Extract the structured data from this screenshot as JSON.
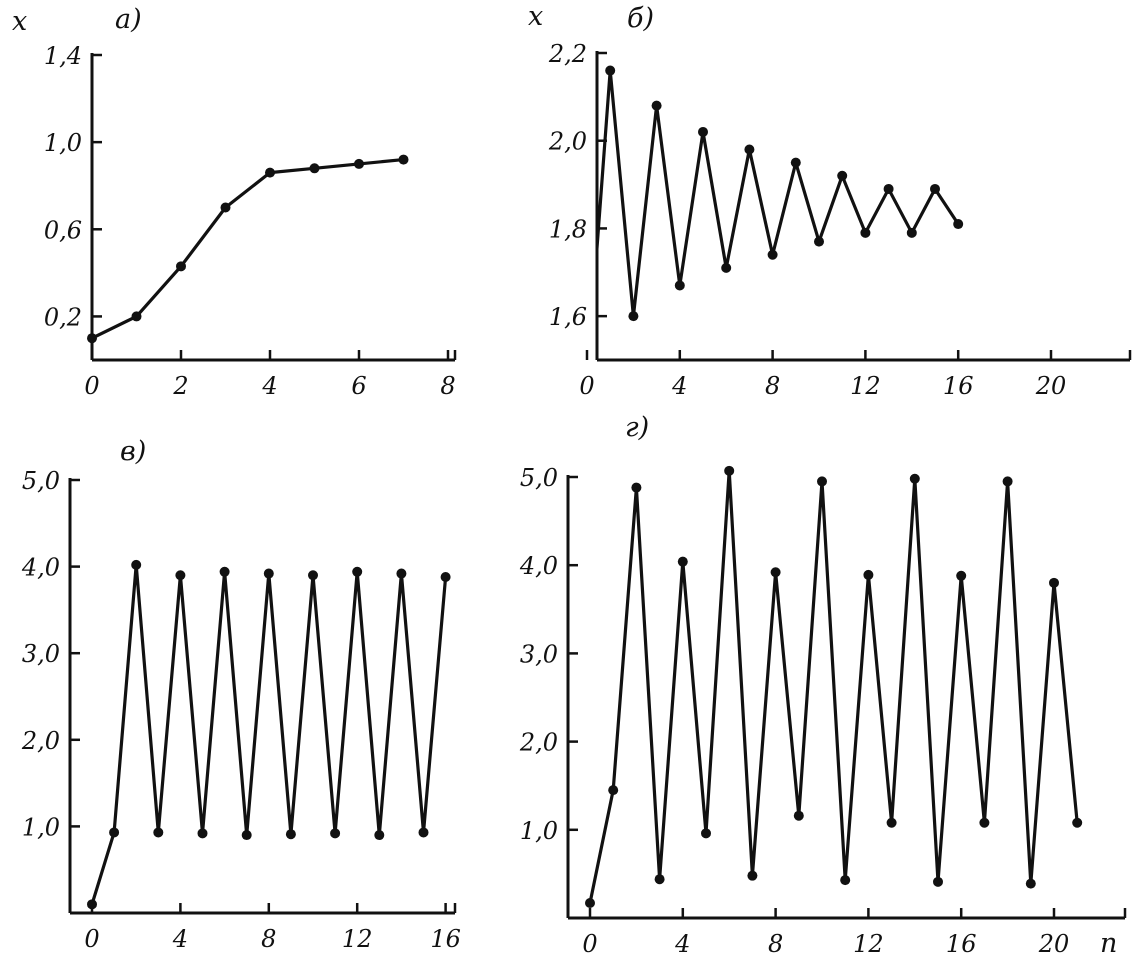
{
  "chart_data": [
    {
      "type": "line",
      "panel_label": "а)",
      "ylabel": "x",
      "xlabel": "",
      "xlim": [
        0,
        8
      ],
      "ylim": [
        0.0,
        1.4
      ],
      "x_ticks": [
        "0",
        "2",
        "4",
        "6",
        "8"
      ],
      "y_ticks": [
        "0,2",
        "0,6",
        "1,0",
        "1,4"
      ],
      "x": [
        0,
        1,
        2,
        3,
        4,
        5,
        6,
        7
      ],
      "series": [
        {
          "values": [
            0.1,
            0.2,
            0.43,
            0.7,
            0.86,
            0.88,
            0.9,
            0.92
          ]
        }
      ]
    },
    {
      "type": "line",
      "panel_label": "б)",
      "ylabel": "x",
      "xlabel": "",
      "xlim": [
        0,
        24
      ],
      "ylim": [
        1.5,
        2.2
      ],
      "x_ticks": [
        "0",
        "4",
        "8",
        "12",
        "16",
        "20"
      ],
      "y_ticks": [
        "1,6",
        "1,8",
        "2,0",
        "2,2"
      ],
      "x": [
        0,
        1,
        2,
        3,
        4,
        5,
        6,
        7,
        8,
        9,
        10,
        11,
        12,
        13,
        14,
        15,
        16
      ],
      "series": [
        {
          "values": [
            1.45,
            2.16,
            1.6,
            2.08,
            1.67,
            2.02,
            1.71,
            1.98,
            1.74,
            1.95,
            1.77,
            1.92,
            1.79,
            1.89,
            1.79,
            1.89,
            1.81
          ]
        }
      ]
    },
    {
      "type": "line",
      "panel_label": "в)",
      "ylabel": "",
      "xlabel": "",
      "xlim": [
        0,
        16.5
      ],
      "ylim": [
        0.0,
        5.0
      ],
      "x_ticks": [
        "0",
        "4",
        "8",
        "12",
        "16"
      ],
      "y_ticks": [
        "1,0",
        "2,0",
        "3,0",
        "4,0",
        "5,0"
      ],
      "x": [
        0,
        1,
        2,
        3,
        4,
        5,
        6,
        7,
        8,
        9,
        10,
        11,
        12,
        13,
        14,
        15,
        16
      ],
      "series": [
        {
          "values": [
            0.1,
            0.93,
            4.02,
            0.93,
            3.9,
            0.92,
            3.94,
            0.9,
            3.92,
            0.91,
            3.9,
            0.92,
            3.94,
            0.9,
            3.92,
            0.93,
            3.88
          ]
        }
      ]
    },
    {
      "type": "line",
      "panel_label": "г)",
      "ylabel": "",
      "xlabel": "n",
      "xlim": [
        0,
        23
      ],
      "ylim": [
        0.0,
        5.0
      ],
      "x_ticks": [
        "0",
        "4",
        "8",
        "12",
        "16",
        "20"
      ],
      "y_ticks": [
        "1,0",
        "2,0",
        "3,0",
        "4,0",
        "5,0"
      ],
      "x": [
        0,
        1,
        2,
        3,
        4,
        5,
        6,
        7,
        8,
        9,
        10,
        11,
        12,
        13,
        14,
        15,
        16,
        17,
        18,
        19,
        20,
        21
      ],
      "series": [
        {
          "values": [
            0.17,
            1.45,
            4.88,
            0.44,
            4.04,
            0.96,
            5.07,
            0.48,
            3.92,
            1.16,
            4.95,
            0.43,
            3.89,
            1.08,
            4.98,
            0.41,
            3.88,
            1.08,
            4.95,
            0.39,
            3.8,
            1.08
          ]
        }
      ]
    }
  ]
}
